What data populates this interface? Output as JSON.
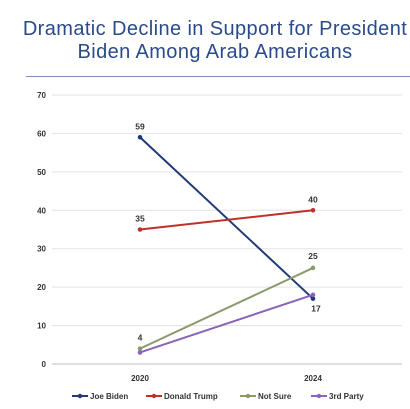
{
  "title_line1": "Dramatic Decline in Support for President",
  "title_line2": "Biden Among Arab Americans",
  "chart_data": {
    "type": "line",
    "title": "Dramatic Decline in Support for President Biden Among Arab Americans",
    "categories": [
      "2020",
      "2024"
    ],
    "ylim": [
      0,
      70
    ],
    "yticks": [
      0,
      10,
      20,
      30,
      40,
      50,
      60,
      70
    ],
    "grid": true,
    "legend_position": "bottom",
    "series": [
      {
        "name": "Joe Biden",
        "values": [
          59,
          17
        ],
        "color": "#1f3a7a",
        "labels": [
          "59",
          "17"
        ]
      },
      {
        "name": "Donald Trump",
        "values": [
          35,
          40
        ],
        "color": "#c0302b",
        "labels": [
          "35",
          "40"
        ]
      },
      {
        "name": "Not Sure",
        "values": [
          4,
          25
        ],
        "color": "#8a9a6a",
        "labels": [
          "4",
          "25"
        ]
      },
      {
        "name": "3rd Party",
        "values": [
          3,
          18
        ],
        "color": "#8a64b8",
        "labels": [
          "",
          ""
        ]
      }
    ]
  }
}
